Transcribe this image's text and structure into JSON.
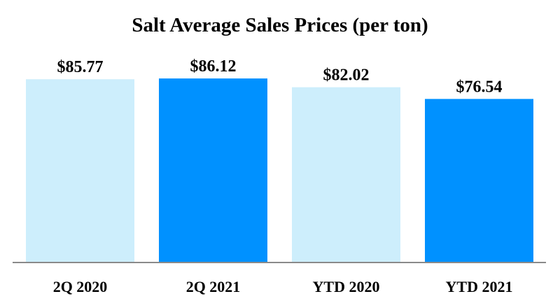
{
  "chart_data": {
    "type": "bar",
    "title": "Salt Average Sales Prices (per ton)",
    "categories": [
      "2Q 2020",
      "2Q 2021",
      "YTD 2020",
      "YTD 2021"
    ],
    "values": [
      85.77,
      86.12,
      82.02,
      76.54
    ],
    "value_labels": [
      "$85.77",
      "$86.12",
      "$82.02",
      "$76.54"
    ],
    "bar_colors": [
      "#cdeefc",
      "#0091ff",
      "#cdeefc",
      "#0091ff"
    ],
    "xlabel": "",
    "ylabel": "",
    "ylim": [
      0,
      95
    ],
    "grid": false,
    "legend": "none"
  }
}
